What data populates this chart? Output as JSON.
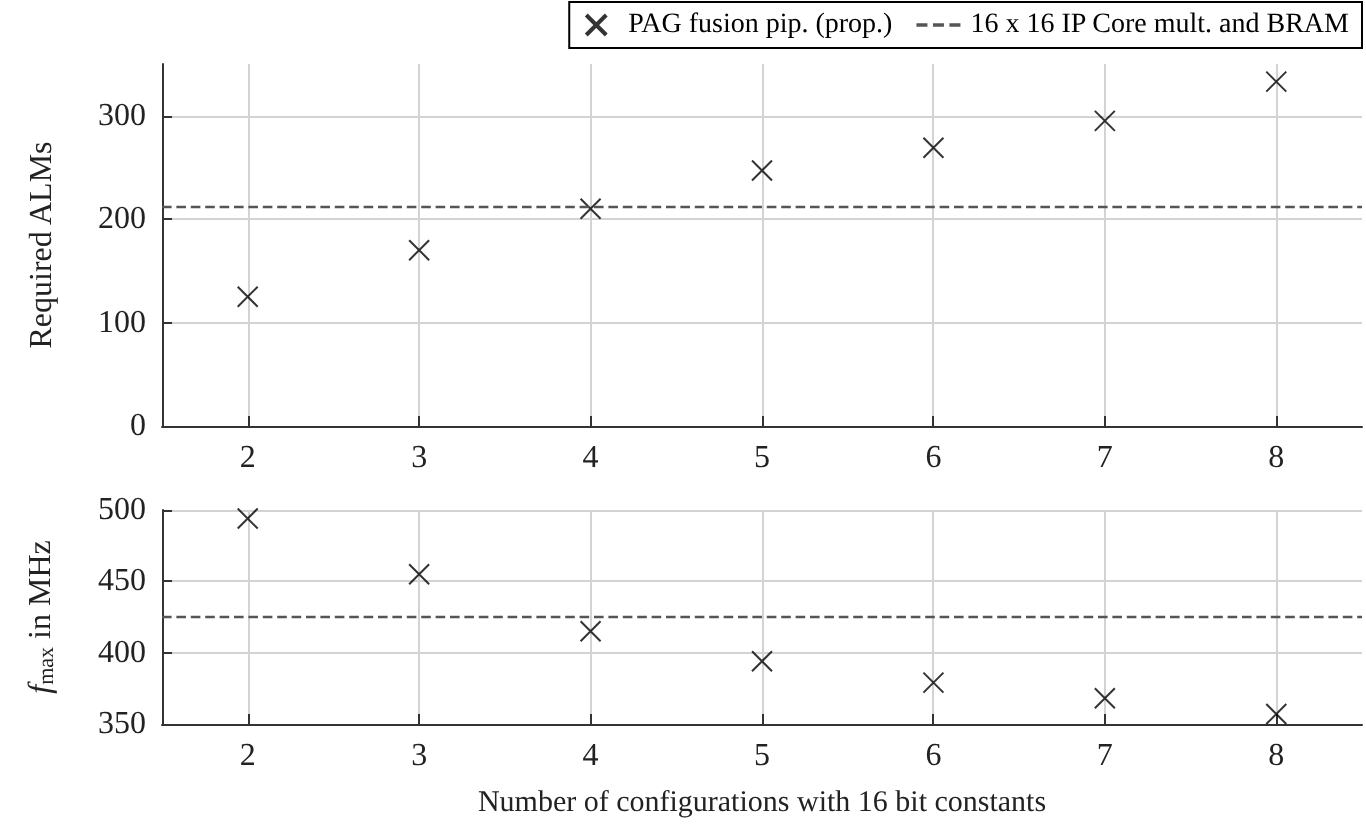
{
  "chart_data": [
    {
      "type": "scatter",
      "ylabel": "Required ALMs",
      "x": [
        2,
        3,
        4,
        5,
        6,
        7,
        8
      ],
      "xlim": [
        1.5,
        8.5
      ],
      "xticks": [
        2,
        3,
        4,
        5,
        6,
        7,
        8
      ],
      "ylim": [
        0,
        350
      ],
      "yticks": [
        0,
        100,
        200,
        300
      ],
      "grid": true,
      "legend": "top right",
      "marker": "cross",
      "series": [
        {
          "name": "PAG fusion pip. (prop.)",
          "color": "#000000",
          "values": [
            125,
            170,
            210,
            247,
            269,
            295,
            333
          ]
        }
      ],
      "ref_lines": [
        {
          "axis": "y",
          "value": 212,
          "label": "16 x 16 IP Core mult. and BRAM",
          "color": "#555555",
          "line_style": "dashed"
        }
      ]
    },
    {
      "type": "scatter",
      "ylabel": "f$_{max}$ in MHz",
      "xlabel": "Number of configurations with 16 bit constants",
      "x": [
        2,
        3,
        4,
        5,
        6,
        7,
        8
      ],
      "xlim": [
        1.5,
        8.5
      ],
      "xticks": [
        2,
        3,
        4,
        5,
        6,
        7,
        8
      ],
      "ylim": [
        350,
        500
      ],
      "yticks": [
        350,
        400,
        450,
        500
      ],
      "grid": true,
      "marker": "cross",
      "series": [
        {
          "color": "#000000",
          "values": [
            494,
            455,
            415,
            394,
            379,
            368,
            357
          ]
        }
      ],
      "ref_lines": [
        {
          "axis": "y",
          "value": 425,
          "color": "#555555",
          "line_style": "dashed"
        }
      ]
    }
  ]
}
